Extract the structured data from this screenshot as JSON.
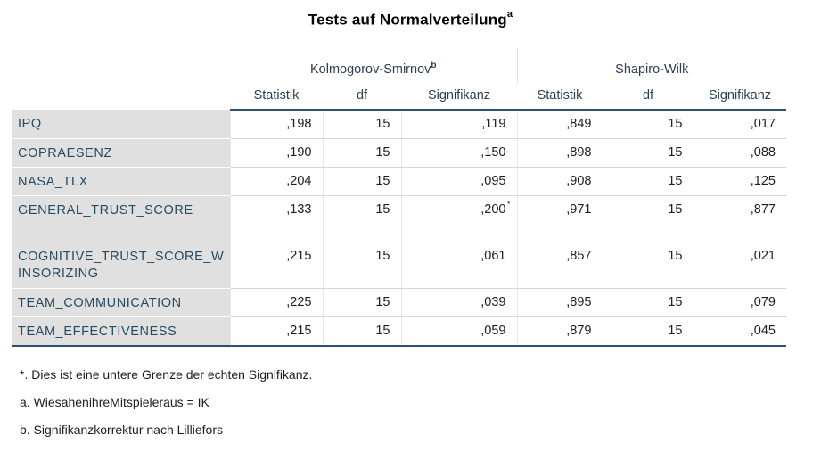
{
  "table": {
    "title": "Tests auf Normalverteilung",
    "title_marker": "a",
    "groups": [
      {
        "label": "Kolmogorov-Smirnov",
        "marker": "b"
      },
      {
        "label": "Shapiro-Wilk",
        "marker": ""
      }
    ],
    "columns": [
      "Statistik",
      "df",
      "Signifikanz",
      "Statistik",
      "df",
      "Signifikanz"
    ],
    "rows": [
      {
        "label": "IPQ",
        "values": [
          ",198",
          "15",
          ",119",
          ",849",
          "15",
          ",017"
        ],
        "marker": ""
      },
      {
        "label": "COPRAESENZ",
        "values": [
          ",190",
          "15",
          ",150",
          ",898",
          "15",
          ",088"
        ],
        "marker": ""
      },
      {
        "label": "NASA_TLX",
        "values": [
          ",204",
          "15",
          ",095",
          ",908",
          "15",
          ",125"
        ],
        "marker": ""
      },
      {
        "label": "GENERAL_TRUST_SCORE",
        "values": [
          ",133",
          "15",
          ",200",
          ",971",
          "15",
          ",877"
        ],
        "marker": "*"
      },
      {
        "label": "COGNITIVE_TRUST_SCORE_WINSORIZING",
        "values": [
          ",215",
          "15",
          ",061",
          ",857",
          "15",
          ",021"
        ],
        "marker": ""
      },
      {
        "label": "TEAM_COMMUNICATION",
        "values": [
          ",225",
          "15",
          ",039",
          ",895",
          "15",
          ",079"
        ],
        "marker": ""
      },
      {
        "label": "TEAM_EFFECTIVENESS",
        "values": [
          ",215",
          "15",
          ",059",
          ",879",
          "15",
          ",045"
        ],
        "marker": ""
      }
    ]
  },
  "footnotes": [
    "*. Dies ist eine untere Grenze der echten Signifikanz.",
    "a. WiesahenihreMitspieleraus = IK",
    "b. Signifikanzkorrektur nach Lilliefors"
  ]
}
